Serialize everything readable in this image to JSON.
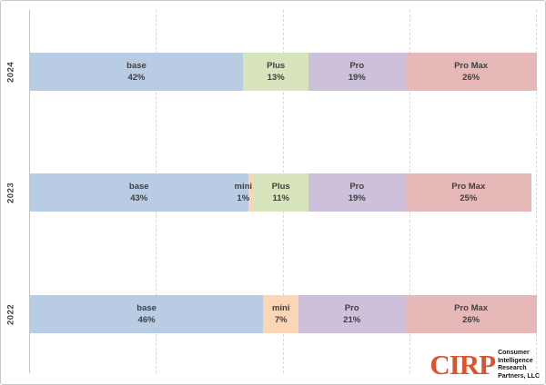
{
  "chart_data": {
    "type": "bar",
    "orientation": "horizontal-stacked",
    "unit": "percent",
    "title": "",
    "xlabel": "",
    "ylabel": "",
    "xlim": [
      0,
      100
    ],
    "grid": "vertical-dashed",
    "gridlines_pct": [
      25,
      50,
      75,
      100
    ],
    "categories": [
      "2024",
      "2023",
      "2022"
    ],
    "legend": [
      "base",
      "mini",
      "Plus",
      "Pro",
      "Pro Max"
    ],
    "rows": [
      {
        "year": "2024",
        "segments": [
          {
            "label": "base",
            "value": 42
          },
          {
            "label": "Plus",
            "value": 13
          },
          {
            "label": "Pro",
            "value": 19
          },
          {
            "label": "Pro Max",
            "value": 26
          }
        ]
      },
      {
        "year": "2023",
        "segments": [
          {
            "label": "base",
            "value": 43
          },
          {
            "label": "mini",
            "value": 1,
            "label_overflow": "left"
          },
          {
            "label": "Plus",
            "value": 11
          },
          {
            "label": "Pro",
            "value": 19
          },
          {
            "label": "Pro Max",
            "value": 25
          }
        ]
      },
      {
        "year": "2022",
        "segments": [
          {
            "label": "base",
            "value": 46
          },
          {
            "label": "mini",
            "value": 7
          },
          {
            "label": "Pro",
            "value": 21
          },
          {
            "label": "Pro Max",
            "value": 26
          }
        ]
      }
    ]
  },
  "colors": {
    "base": "#b8cce4",
    "mini": "#fcd5b4",
    "Plus": "#d7e4bc",
    "Pro": "#ccc0da",
    "Pro Max": "#e6b8b7",
    "label_text": "#404040",
    "gridline": "#d9d9d9",
    "axis": "#c4c4c4",
    "logo_orange": "#e0522d"
  },
  "logo": {
    "name": "CIRP",
    "lines": [
      "Consumer",
      "Intelligence",
      "Research",
      "Partners, LLC"
    ]
  }
}
